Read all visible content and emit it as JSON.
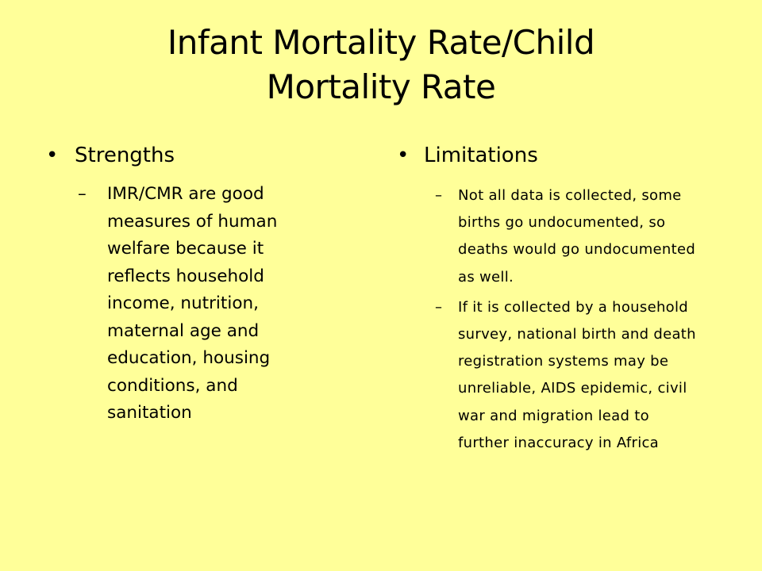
{
  "slide": {
    "title_line1": "Infant Mortality Rate/Child",
    "title_line2": "Mortality Rate",
    "background_color": "#FFFF99",
    "bullet_glyph": "•",
    "dash_glyph": "–",
    "left": {
      "heading": "Strengths",
      "items": [
        "IMR/CMR are good measures of human welfare because it reflects household income, nutrition, maternal age and education, housing conditions, and sanitation"
      ]
    },
    "right": {
      "heading": "Limitations",
      "items": [
        "Not all data is collected, some births go undocumented, so deaths would go undocumented as well.",
        "If it is collected by a household survey, national birth and death registration systems may be unreliable, AIDS epidemic, civil war and migration lead to further inaccuracy in Africa"
      ]
    }
  }
}
